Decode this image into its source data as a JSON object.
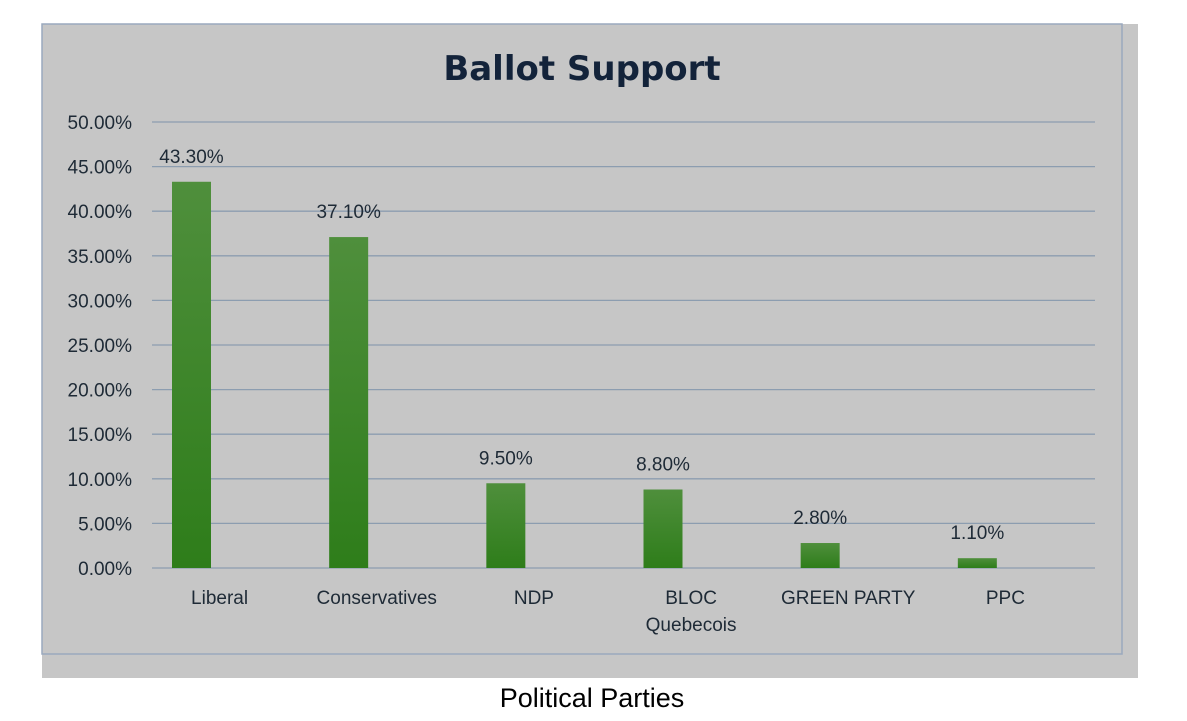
{
  "chart_data": {
    "type": "bar",
    "title": "Ballot Support",
    "xlabel": "Political Parties",
    "ylabel": "",
    "categories": [
      [
        "Liberal"
      ],
      [
        "Conservatives"
      ],
      [
        "NDP"
      ],
      [
        "BLOC",
        "Quebecois"
      ],
      [
        "GREEN PARTY"
      ],
      [
        "PPC"
      ]
    ],
    "values": [
      43.3,
      37.1,
      9.5,
      8.8,
      2.8,
      1.1
    ],
    "data_labels": [
      "43.30%",
      "37.10%",
      "9.50%",
      "8.80%",
      "2.80%",
      "1.10%"
    ],
    "ylim": [
      0,
      50
    ],
    "yticks": [
      0,
      5,
      10,
      15,
      20,
      25,
      30,
      35,
      40,
      45,
      50
    ],
    "ytick_labels": [
      "0.00%",
      "5.00%",
      "10.00%",
      "15.00%",
      "20.00%",
      "25.00%",
      "30.00%",
      "35.00%",
      "40.00%",
      "45.00%",
      "50.00%"
    ],
    "grid": true,
    "legend": "none",
    "colors": {
      "bar_top": "#4f8f3c",
      "bar_bottom": "#2e7d1a",
      "plot_background": "#c6c6c6",
      "gridline": "#8c9db0",
      "frame": "#9aa9bd"
    }
  }
}
